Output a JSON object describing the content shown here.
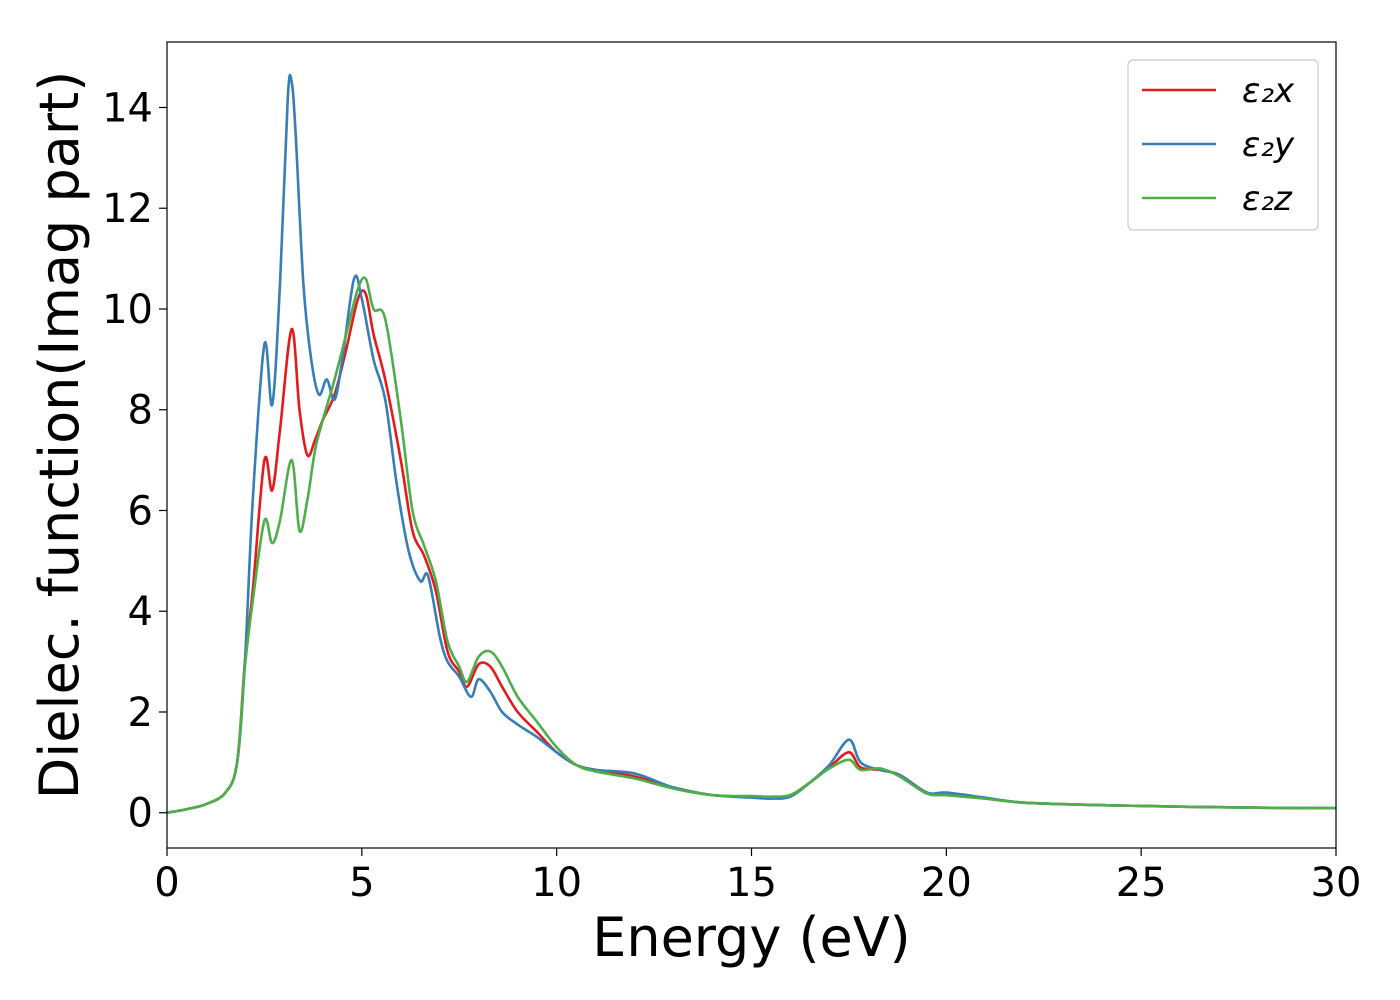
{
  "chart_data": {
    "type": "line",
    "title": "",
    "xlabel": "Energy (eV)",
    "ylabel": "Dielec. function(Imag part)",
    "xlim": [
      0,
      30
    ],
    "ylim": [
      -0.7,
      15.3
    ],
    "xticks": [
      0,
      5,
      10,
      15,
      20,
      25,
      30
    ],
    "yticks": [
      0,
      2,
      4,
      6,
      8,
      10,
      12,
      14
    ],
    "xtick_labels": [
      "0",
      "5",
      "10",
      "15",
      "20",
      "25",
      "30"
    ],
    "ytick_labels": [
      "0",
      "2",
      "4",
      "6",
      "8",
      "10",
      "12",
      "14"
    ],
    "grid": false,
    "legend_position": "top-right",
    "series": [
      {
        "name": "ε₂x",
        "color": "#e41a1c",
        "x": [
          0,
          0.5,
          1.0,
          1.5,
          1.8,
          2.0,
          2.2,
          2.5,
          2.7,
          2.9,
          3.2,
          3.4,
          3.6,
          3.8,
          4.0,
          4.3,
          4.6,
          4.9,
          5.1,
          5.3,
          5.6,
          6.0,
          6.3,
          6.6,
          6.9,
          7.2,
          7.5,
          7.7,
          8.0,
          8.3,
          8.6,
          9.0,
          9.5,
          10.0,
          10.5,
          11.0,
          12.0,
          13.0,
          14.0,
          15.0,
          15.5,
          16.0,
          16.5,
          17.0,
          17.5,
          17.8,
          18.3,
          18.8,
          19.5,
          20.0,
          21.0,
          22.0,
          24.0,
          26.0,
          28.0,
          30.0
        ],
        "y": [
          0.0,
          0.07,
          0.17,
          0.4,
          1.0,
          3.0,
          4.4,
          7.0,
          6.4,
          7.6,
          9.6,
          8.0,
          7.1,
          7.4,
          7.8,
          8.3,
          9.2,
          10.2,
          10.3,
          9.5,
          8.6,
          7.0,
          5.6,
          5.1,
          4.4,
          3.2,
          2.8,
          2.5,
          2.95,
          2.9,
          2.5,
          2.0,
          1.6,
          1.2,
          0.95,
          0.85,
          0.72,
          0.5,
          0.35,
          0.32,
          0.3,
          0.35,
          0.6,
          0.9,
          1.2,
          0.9,
          0.85,
          0.75,
          0.4,
          0.35,
          0.28,
          0.2,
          0.15,
          0.12,
          0.1,
          0.09
        ]
      },
      {
        "name": "ε₂y",
        "color": "#377eb8",
        "x": [
          0,
          0.5,
          1.0,
          1.5,
          1.8,
          2.0,
          2.2,
          2.5,
          2.7,
          2.9,
          3.1,
          3.2,
          3.3,
          3.5,
          3.7,
          3.9,
          4.1,
          4.3,
          4.5,
          4.8,
          5.0,
          5.3,
          5.6,
          5.9,
          6.2,
          6.5,
          6.7,
          7.0,
          7.2,
          7.5,
          7.8,
          8.0,
          8.3,
          8.6,
          9.0,
          9.5,
          10.0,
          10.5,
          11.0,
          12.0,
          13.0,
          14.0,
          15.0,
          15.5,
          16.0,
          16.5,
          17.0,
          17.5,
          17.8,
          18.3,
          18.8,
          19.5,
          20.0,
          21.0,
          22.0,
          24.0,
          26.0,
          28.0,
          30.0
        ],
        "y": [
          0.0,
          0.07,
          0.17,
          0.4,
          1.0,
          3.0,
          6.2,
          9.3,
          8.1,
          10.5,
          14.2,
          14.5,
          13.5,
          10.5,
          9.0,
          8.3,
          8.6,
          8.2,
          9.0,
          10.6,
          10.2,
          9.0,
          8.2,
          6.5,
          5.2,
          4.6,
          4.7,
          3.5,
          3.0,
          2.7,
          2.3,
          2.65,
          2.4,
          2.0,
          1.75,
          1.5,
          1.2,
          0.95,
          0.85,
          0.78,
          0.5,
          0.35,
          0.3,
          0.28,
          0.32,
          0.6,
          0.95,
          1.45,
          1.0,
          0.85,
          0.75,
          0.4,
          0.4,
          0.3,
          0.2,
          0.15,
          0.12,
          0.1,
          0.09
        ]
      },
      {
        "name": "ε₂z",
        "color": "#4daf4a",
        "x": [
          0,
          0.5,
          1.0,
          1.5,
          1.8,
          2.0,
          2.2,
          2.5,
          2.7,
          2.9,
          3.2,
          3.4,
          3.6,
          3.8,
          4.0,
          4.3,
          4.6,
          4.9,
          5.1,
          5.3,
          5.6,
          6.0,
          6.3,
          6.6,
          6.9,
          7.2,
          7.5,
          7.7,
          8.0,
          8.3,
          8.6,
          9.0,
          9.5,
          10.0,
          10.5,
          11.0,
          12.0,
          13.0,
          14.0,
          15.0,
          15.5,
          16.0,
          16.5,
          17.0,
          17.5,
          17.8,
          18.3,
          18.8,
          19.5,
          20.0,
          21.0,
          22.0,
          24.0,
          26.0,
          28.0,
          30.0
        ],
        "y": [
          0.0,
          0.07,
          0.17,
          0.4,
          1.0,
          2.9,
          4.2,
          5.8,
          5.35,
          5.8,
          7.0,
          5.6,
          6.2,
          7.2,
          7.8,
          8.6,
          9.5,
          10.4,
          10.6,
          10.0,
          9.8,
          7.8,
          6.0,
          5.3,
          4.6,
          3.4,
          2.9,
          2.6,
          3.1,
          3.2,
          2.9,
          2.3,
          1.8,
          1.3,
          0.95,
          0.82,
          0.68,
          0.48,
          0.35,
          0.33,
          0.32,
          0.35,
          0.6,
          0.88,
          1.05,
          0.85,
          0.88,
          0.72,
          0.38,
          0.35,
          0.28,
          0.2,
          0.15,
          0.12,
          0.1,
          0.09
        ]
      }
    ]
  }
}
